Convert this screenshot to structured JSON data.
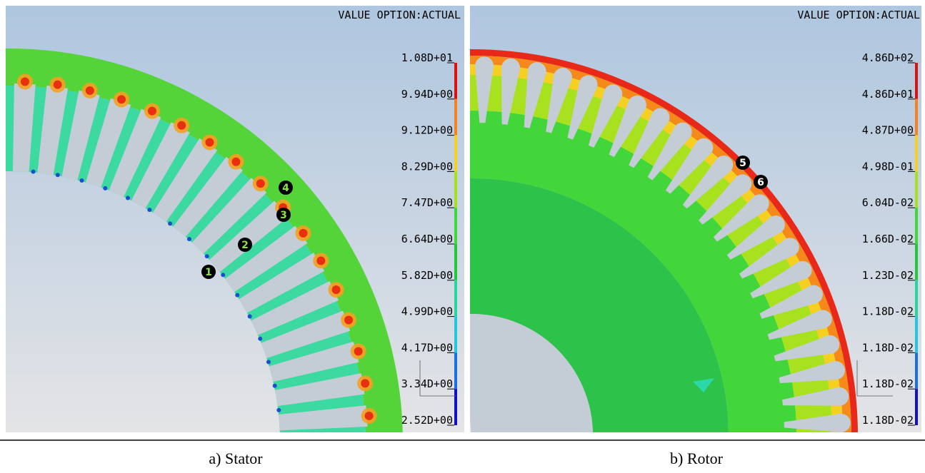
{
  "panels": [
    {
      "header": "VALUE OPTION:ACTUAL",
      "legend": [
        "1.08D+01",
        "9.94D+00",
        "9.12D+00",
        "8.29D+00",
        "7.47D+00",
        "6.64D+00",
        "5.82D+00",
        "4.99D+00",
        "4.17D+00",
        "3.34D+00",
        "2.52D+00"
      ],
      "markers": [
        "1",
        "2",
        "3",
        "4"
      ],
      "caption": "a) Stator"
    },
    {
      "header": "VALUE OPTION:ACTUAL",
      "legend": [
        "4.86D+02",
        "4.86D+01",
        "4.87D+00",
        "4.98D-01",
        "6.04D-02",
        "1.66D-02",
        "1.23D-02",
        "1.18D-02",
        "1.18D-02",
        "1.18D-02",
        "1.18D-02"
      ],
      "markers": [
        "5",
        "6"
      ],
      "caption": "b) Rotor"
    }
  ]
}
